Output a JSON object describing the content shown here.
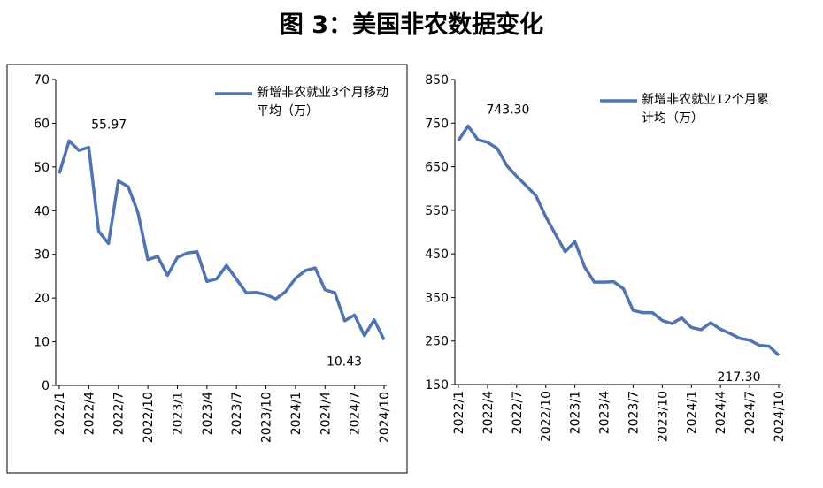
{
  "title": "图 3：美国非农数据变化",
  "chart_data": [
    {
      "type": "line",
      "categories": [
        "2022/1",
        null,
        null,
        "2022/4",
        null,
        null,
        "2022/7",
        null,
        null,
        "2022/10",
        null,
        null,
        "2023/1",
        null,
        null,
        "2023/4",
        null,
        null,
        "2023/7",
        null,
        null,
        "2023/10",
        null,
        null,
        "2024/1",
        null,
        null,
        "2024/4",
        null,
        null,
        "2024/7",
        null,
        null,
        "2024/10"
      ],
      "series": [
        {
          "name": "新增非农就业3个月移动平均（万）",
          "color": "#4f74b3",
          "values": [
            48.5,
            55.97,
            53.8,
            54.5,
            35.3,
            32.5,
            46.8,
            45.5,
            39.5,
            28.8,
            29.5,
            25.2,
            29.3,
            30.3,
            30.6,
            23.8,
            24.4,
            27.5,
            24.3,
            21.2,
            21.3,
            20.8,
            19.8,
            21.5,
            24.5,
            26.3,
            26.9,
            21.9,
            21.2,
            14.8,
            16.1,
            11.4,
            15.0,
            10.43
          ],
          "value_labels": [
            null,
            "55.97",
            null,
            null,
            null,
            null,
            null,
            null,
            null,
            null,
            null,
            null,
            null,
            null,
            null,
            null,
            null,
            null,
            null,
            null,
            null,
            null,
            null,
            null,
            null,
            null,
            null,
            null,
            null,
            null,
            null,
            null,
            null,
            "10.43"
          ]
        }
      ],
      "ylim": [
        0,
        70
      ],
      "yticks": [
        0,
        10,
        20,
        30,
        40,
        50,
        60,
        70
      ]
    },
    {
      "type": "line",
      "categories": [
        "2022/1",
        null,
        null,
        "2022/4",
        null,
        null,
        "2022/7",
        null,
        null,
        "2022/10",
        null,
        null,
        "2023/1",
        null,
        null,
        "2023/4",
        null,
        null,
        "2023/7",
        null,
        null,
        "2023/10",
        null,
        null,
        "2024/1",
        null,
        null,
        "2024/4",
        null,
        null,
        "2024/7",
        null,
        null,
        "2024/10"
      ],
      "series": [
        {
          "name": "新增非农就业12个月累计均（万）",
          "color": "#4f74b3",
          "values": [
            710,
            743.3,
            712,
            706,
            692,
            652,
            628,
            606,
            583,
            535,
            495,
            455,
            478,
            420,
            385,
            385,
            386,
            370,
            320,
            315,
            315,
            297,
            290,
            303,
            281,
            276,
            292,
            277,
            267,
            256,
            252,
            240,
            238,
            217.3
          ],
          "value_labels": [
            null,
            "743.30",
            null,
            null,
            null,
            null,
            null,
            null,
            null,
            null,
            null,
            null,
            null,
            null,
            null,
            null,
            null,
            null,
            null,
            null,
            null,
            null,
            null,
            null,
            null,
            null,
            null,
            null,
            null,
            null,
            null,
            null,
            null,
            "217.30"
          ]
        }
      ],
      "ylim": [
        150,
        850
      ],
      "yticks": [
        150,
        250,
        350,
        450,
        550,
        650,
        750,
        850
      ]
    }
  ]
}
